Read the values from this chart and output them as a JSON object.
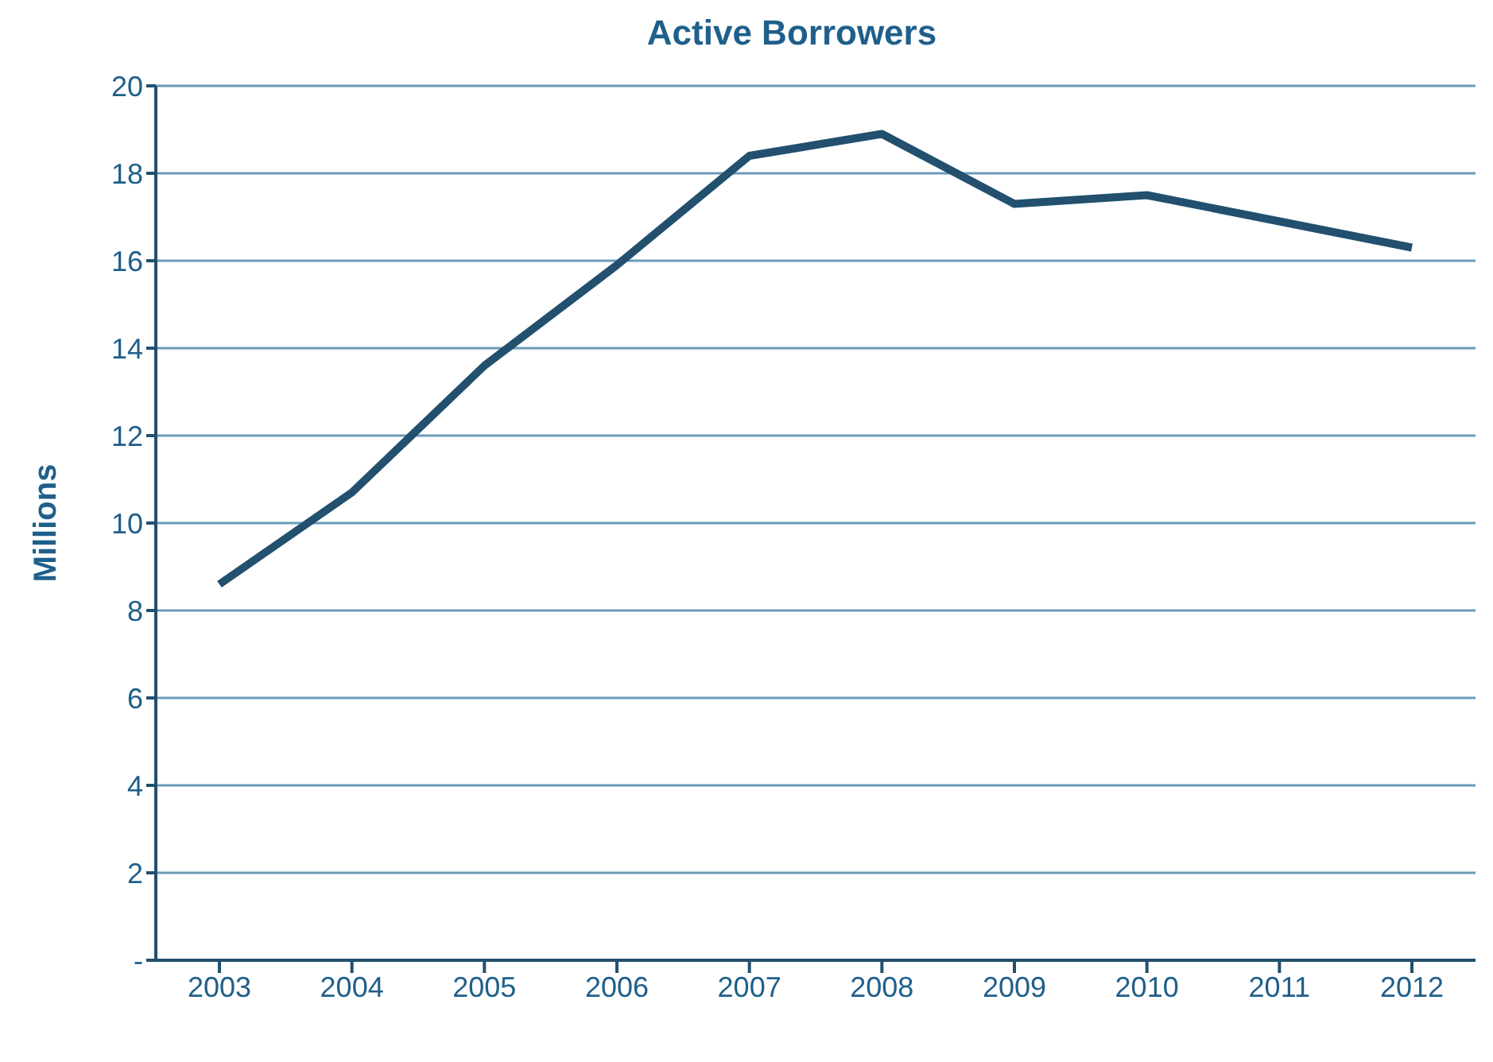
{
  "chart_data": {
    "type": "line",
    "title": "Active Borrowers",
    "ylabel": "Millions",
    "categories": [
      "2003",
      "2004",
      "2005",
      "2006",
      "2007",
      "2008",
      "2009",
      "2010",
      "2011",
      "2012"
    ],
    "series": [
      {
        "color": "#22506e",
        "values": [
          8.6,
          10.7,
          13.6,
          15.9,
          18.4,
          18.9,
          17.3,
          17.5,
          16.9,
          16.3
        ]
      }
    ],
    "ylim": [
      0,
      20
    ],
    "yticks": [
      {
        "value": 0,
        "label": "-"
      },
      2,
      4,
      6,
      8,
      10,
      12,
      14,
      16,
      18,
      20
    ],
    "grid": "y",
    "legend": false,
    "marker": "none",
    "line_style": "solid"
  }
}
